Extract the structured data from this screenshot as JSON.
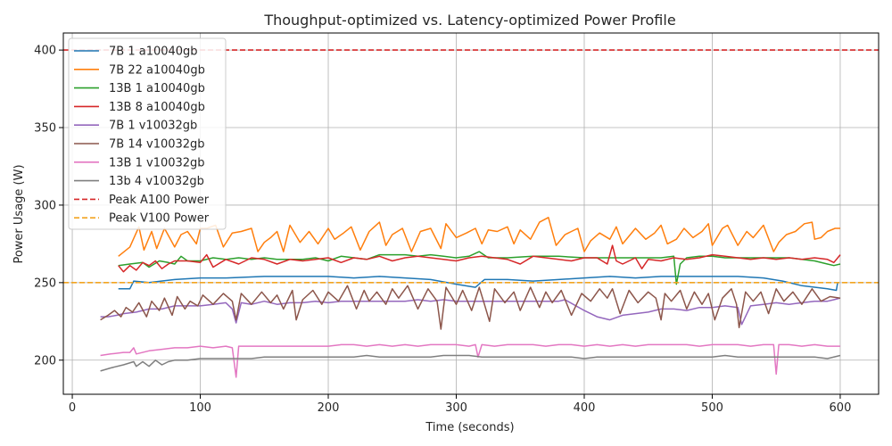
{
  "chart_data": {
    "type": "line",
    "title": "Thoughput-optimized vs. Latency-optimized Power Profile",
    "xlabel": "Time (seconds)",
    "ylabel": "Power Usage (W)",
    "xlim": [
      -7,
      630
    ],
    "ylim": [
      178,
      411
    ],
    "xticks": [
      0,
      100,
      200,
      300,
      400,
      500,
      600
    ],
    "yticks": [
      200,
      250,
      300,
      350,
      400
    ],
    "grid": true,
    "legend_position": "top-left",
    "series": [
      {
        "name": "7B 1 a10040gb",
        "color": "#1f77b4",
        "style": "solid",
        "x": [
          36,
          45,
          48,
          60,
          80,
          100,
          120,
          150,
          180,
          200,
          220,
          240,
          260,
          280,
          300,
          315,
          322,
          340,
          360,
          380,
          400,
          420,
          440,
          460,
          480,
          500,
          520,
          540,
          555,
          570,
          590,
          597,
          598
        ],
        "y": [
          246,
          246,
          251,
          250,
          252,
          253,
          253,
          254,
          254,
          254,
          253,
          254,
          253,
          252,
          249,
          247,
          252,
          252,
          251,
          252,
          253,
          254,
          253,
          254,
          254,
          254,
          254,
          253,
          251,
          248,
          246,
          245,
          250
        ]
      },
      {
        "name": "7B 22 a10040gb",
        "color": "#ff7f0e",
        "style": "solid",
        "x": [
          36,
          45,
          52,
          56,
          62,
          66,
          72,
          80,
          85,
          90,
          97,
          100,
          105,
          112,
          118,
          125,
          132,
          140,
          145,
          150,
          155,
          160,
          165,
          170,
          178,
          185,
          192,
          200,
          205,
          212,
          218,
          225,
          232,
          240,
          245,
          250,
          258,
          265,
          272,
          280,
          288,
          292,
          300,
          308,
          315,
          320,
          325,
          332,
          340,
          345,
          350,
          358,
          365,
          372,
          378,
          385,
          390,
          395,
          400,
          405,
          412,
          420,
          425,
          430,
          440,
          448,
          455,
          460,
          465,
          472,
          478,
          485,
          492,
          497,
          500,
          508,
          512,
          520,
          527,
          532,
          540,
          548,
          552,
          558,
          565,
          572,
          578,
          580,
          585,
          590,
          596,
          600
        ],
        "y": [
          267,
          273,
          286,
          271,
          283,
          272,
          285,
          273,
          281,
          283,
          275,
          285,
          285,
          287,
          273,
          282,
          283,
          285,
          270,
          276,
          279,
          283,
          270,
          287,
          276,
          283,
          275,
          285,
          278,
          282,
          286,
          271,
          283,
          289,
          274,
          281,
          285,
          270,
          283,
          285,
          272,
          288,
          279,
          282,
          285,
          275,
          284,
          283,
          286,
          275,
          284,
          278,
          289,
          292,
          274,
          281,
          283,
          285,
          270,
          277,
          282,
          278,
          286,
          275,
          285,
          278,
          282,
          287,
          275,
          278,
          285,
          279,
          283,
          288,
          274,
          285,
          287,
          274,
          283,
          279,
          287,
          270,
          276,
          281,
          283,
          288,
          289,
          278,
          279,
          283,
          285,
          285
        ]
      },
      {
        "name": "13B 1 a10040gb",
        "color": "#2ca02c",
        "style": "solid",
        "x": [
          36,
          45,
          55,
          60,
          68,
          75,
          80,
          85,
          90,
          100,
          110,
          120,
          130,
          140,
          150,
          160,
          170,
          180,
          190,
          200,
          210,
          220,
          230,
          240,
          250,
          260,
          270,
          280,
          290,
          300,
          310,
          318,
          325,
          340,
          360,
          380,
          400,
          420,
          440,
          460,
          470,
          472,
          475,
          480,
          490,
          500,
          510,
          520,
          530,
          540,
          550,
          560,
          570,
          580,
          590,
          595,
          600
        ],
        "y": [
          261,
          262,
          263,
          260,
          264,
          263,
          262,
          267,
          264,
          264,
          266,
          265,
          266,
          265,
          266,
          265,
          265,
          265,
          266,
          264,
          267,
          266,
          265,
          268,
          268,
          268,
          267,
          268,
          267,
          266,
          267,
          270,
          266,
          266,
          267,
          267,
          266,
          266,
          266,
          266,
          267,
          249,
          262,
          266,
          267,
          267,
          266,
          266,
          266,
          266,
          266,
          266,
          265,
          264,
          262,
          261,
          262
        ]
      },
      {
        "name": "13B 8 a10040gb",
        "color": "#d62728",
        "style": "solid",
        "x": [
          36,
          40,
          45,
          50,
          55,
          60,
          65,
          70,
          75,
          80,
          90,
          100,
          105,
          110,
          120,
          130,
          140,
          150,
          160,
          170,
          180,
          190,
          200,
          210,
          220,
          230,
          240,
          250,
          260,
          270,
          280,
          290,
          300,
          310,
          320,
          330,
          340,
          350,
          360,
          370,
          380,
          390,
          400,
          410,
          418,
          422,
          425,
          430,
          440,
          445,
          450,
          460,
          470,
          480,
          490,
          500,
          510,
          520,
          530,
          540,
          550,
          560,
          570,
          580,
          590,
          595,
          600
        ],
        "y": [
          261,
          257,
          261,
          258,
          263,
          261,
          264,
          259,
          262,
          264,
          264,
          263,
          268,
          260,
          265,
          262,
          266,
          265,
          262,
          265,
          264,
          265,
          266,
          263,
          266,
          265,
          267,
          264,
          266,
          267,
          266,
          265,
          264,
          266,
          267,
          266,
          265,
          262,
          267,
          266,
          265,
          264,
          266,
          266,
          262,
          274,
          264,
          262,
          266,
          259,
          265,
          264,
          266,
          265,
          266,
          268,
          267,
          266,
          265,
          266,
          265,
          266,
          265,
          266,
          265,
          263,
          268
        ]
      },
      {
        "name": "7B 1 v10032gb",
        "color": "#9467bd",
        "style": "solid",
        "x": [
          22,
          28,
          35,
          40,
          50,
          60,
          70,
          80,
          90,
          100,
          110,
          120,
          125,
          128,
          132,
          140,
          150,
          160,
          170,
          180,
          190,
          200,
          210,
          220,
          230,
          240,
          250,
          260,
          270,
          280,
          290,
          300,
          310,
          320,
          330,
          340,
          350,
          360,
          370,
          380,
          385,
          400,
          410,
          420,
          430,
          440,
          450,
          460,
          470,
          480,
          490,
          500,
          510,
          520,
          523,
          530,
          540,
          550,
          560,
          570,
          580,
          590,
          595,
          600
        ],
        "y": [
          228,
          228,
          229,
          230,
          231,
          233,
          233,
          235,
          235,
          235,
          236,
          237,
          233,
          224,
          237,
          236,
          238,
          236,
          237,
          237,
          238,
          237,
          238,
          238,
          238,
          238,
          238,
          238,
          239,
          238,
          239,
          238,
          238,
          238,
          238,
          238,
          238,
          238,
          238,
          238,
          239,
          232,
          228,
          226,
          229,
          230,
          231,
          233,
          233,
          232,
          234,
          234,
          235,
          234,
          223,
          235,
          236,
          237,
          236,
          237,
          238,
          238,
          239,
          240
        ]
      },
      {
        "name": "7B 14 v10032gb",
        "color": "#8c564b",
        "style": "solid",
        "x": [
          22,
          28,
          33,
          38,
          42,
          47,
          52,
          58,
          62,
          68,
          72,
          78,
          82,
          88,
          92,
          98,
          102,
          110,
          118,
          125,
          128,
          132,
          140,
          148,
          155,
          160,
          165,
          172,
          175,
          180,
          188,
          195,
          200,
          208,
          215,
          222,
          228,
          232,
          238,
          245,
          250,
          255,
          262,
          270,
          278,
          285,
          288,
          292,
          300,
          305,
          312,
          318,
          322,
          326,
          330,
          338,
          345,
          350,
          358,
          365,
          370,
          375,
          382,
          390,
          398,
          405,
          412,
          418,
          422,
          428,
          435,
          442,
          450,
          456,
          460,
          463,
          468,
          475,
          480,
          486,
          492,
          497,
          502,
          508,
          515,
          519,
          521,
          526,
          532,
          538,
          544,
          550,
          556,
          563,
          570,
          578,
          585,
          592,
          600
        ],
        "y": [
          226,
          229,
          232,
          228,
          234,
          231,
          237,
          228,
          238,
          232,
          240,
          229,
          241,
          233,
          238,
          235,
          242,
          236,
          243,
          238,
          226,
          243,
          236,
          244,
          237,
          242,
          233,
          245,
          226,
          239,
          245,
          236,
          244,
          238,
          248,
          233,
          245,
          238,
          244,
          236,
          246,
          240,
          248,
          233,
          246,
          238,
          220,
          247,
          236,
          245,
          232,
          247,
          236,
          225,
          246,
          237,
          244,
          232,
          247,
          234,
          244,
          237,
          245,
          229,
          243,
          238,
          246,
          240,
          246,
          230,
          245,
          237,
          244,
          240,
          226,
          243,
          238,
          245,
          233,
          244,
          236,
          243,
          226,
          240,
          246,
          236,
          221,
          244,
          238,
          244,
          230,
          246,
          238,
          244,
          236,
          246,
          238,
          241,
          240
        ]
      },
      {
        "name": "13B 1 v10032gb",
        "color": "#e377c2",
        "style": "solid",
        "x": [
          22,
          30,
          40,
          45,
          48,
          50,
          60,
          70,
          80,
          90,
          100,
          110,
          120,
          125,
          128,
          130,
          140,
          150,
          160,
          170,
          180,
          190,
          200,
          210,
          220,
          230,
          240,
          250,
          260,
          270,
          280,
          290,
          300,
          310,
          315,
          317,
          320,
          330,
          340,
          350,
          360,
          370,
          380,
          390,
          400,
          410,
          420,
          430,
          440,
          450,
          460,
          470,
          480,
          490,
          500,
          510,
          520,
          530,
          540,
          548,
          550,
          552,
          560,
          570,
          580,
          590,
          600
        ],
        "y": [
          203,
          204,
          205,
          205,
          208,
          204,
          206,
          207,
          208,
          208,
          209,
          208,
          209,
          208,
          189,
          209,
          209,
          209,
          209,
          209,
          209,
          209,
          209,
          210,
          210,
          209,
          210,
          209,
          210,
          209,
          210,
          210,
          210,
          209,
          210,
          202,
          210,
          209,
          210,
          210,
          210,
          209,
          210,
          210,
          209,
          210,
          209,
          210,
          209,
          210,
          210,
          210,
          210,
          209,
          210,
          210,
          210,
          209,
          210,
          210,
          191,
          210,
          210,
          209,
          210,
          209,
          209
        ]
      },
      {
        "name": "13b 4 v10032gb",
        "color": "#7f7f7f",
        "style": "solid",
        "x": [
          22,
          30,
          40,
          48,
          50,
          55,
          60,
          65,
          70,
          75,
          80,
          90,
          100,
          110,
          120,
          130,
          140,
          150,
          160,
          170,
          180,
          190,
          200,
          210,
          220,
          230,
          240,
          250,
          260,
          270,
          280,
          290,
          300,
          310,
          320,
          330,
          340,
          350,
          360,
          370,
          380,
          390,
          400,
          410,
          420,
          430,
          440,
          450,
          460,
          470,
          480,
          490,
          500,
          510,
          520,
          530,
          540,
          550,
          560,
          570,
          580,
          590,
          600
        ],
        "y": [
          193,
          195,
          197,
          199,
          196,
          199,
          196,
          200,
          197,
          199,
          200,
          200,
          201,
          201,
          201,
          201,
          201,
          202,
          202,
          202,
          202,
          202,
          202,
          202,
          202,
          203,
          202,
          202,
          202,
          202,
          202,
          203,
          203,
          203,
          202,
          202,
          202,
          202,
          202,
          202,
          202,
          202,
          201,
          202,
          202,
          202,
          202,
          202,
          202,
          202,
          202,
          202,
          202,
          203,
          202,
          202,
          202,
          202,
          202,
          202,
          202,
          201,
          203
        ]
      },
      {
        "name": "Peak A100 Power",
        "color": "#d62728",
        "style": "dashed",
        "x": [
          -7,
          630
        ],
        "y": [
          400,
          400
        ]
      },
      {
        "name": "Peak V100 Power",
        "color": "#f2a420",
        "style": "dashed",
        "x": [
          -7,
          630
        ],
        "y": [
          250,
          250
        ]
      }
    ]
  }
}
